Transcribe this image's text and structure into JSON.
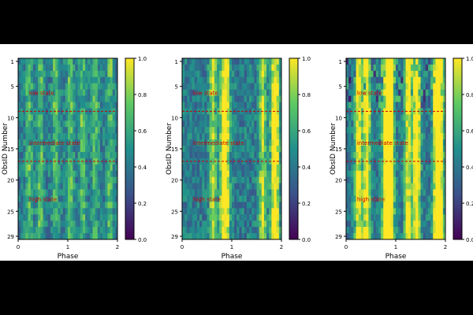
{
  "chart_data": {
    "type": "heatmap",
    "xlabel": "Phase",
    "ylabel": "ObsID Number",
    "xlim": [
      0,
      2
    ],
    "ylim": [
      29.5,
      0.5
    ],
    "x_ticks": [
      "0",
      "1",
      "2"
    ],
    "y_ticks": [
      "1",
      "5",
      "10",
      "15",
      "20",
      "25",
      "29"
    ],
    "y_tick_values": [
      1,
      5,
      10,
      15,
      20,
      25,
      29
    ],
    "colorbar_ticks": [
      "0.0",
      "0.2",
      "0.4",
      "0.6",
      "0.8",
      "1.0"
    ],
    "colorbar_values": [
      0.0,
      0.2,
      0.4,
      0.6,
      0.8,
      1.0
    ],
    "colormap": "viridis",
    "colormap_colors": [
      "#440154",
      "#3b528b",
      "#21908d",
      "#5dc963",
      "#fde725"
    ],
    "state_boundaries": [
      9,
      17
    ],
    "boundary_color": "#cc0000",
    "annotation_color": "#cc0000",
    "annotations": [
      {
        "text": "low state",
        "x": 0.22,
        "y": 6
      },
      {
        "text": "intermediate state",
        "x": 0.22,
        "y": 14
      },
      {
        "text": "high state",
        "x": 0.22,
        "y": 23
      }
    ],
    "panels": [
      {
        "name": "panel-1",
        "ridges": [
          0.22,
          0.45,
          0.75,
          1.05,
          1.3,
          1.55,
          1.85
        ],
        "contrast": 0.35
      },
      {
        "name": "panel-2",
        "ridges": [
          0.62,
          0.82,
          0.9,
          1.62,
          1.84,
          1.9
        ],
        "contrast": 0.6
      },
      {
        "name": "panel-3",
        "ridges": [
          0.25,
          0.42,
          0.8,
          0.9,
          1.25,
          1.42,
          1.82,
          1.9
        ],
        "contrast": 0.9
      }
    ]
  }
}
